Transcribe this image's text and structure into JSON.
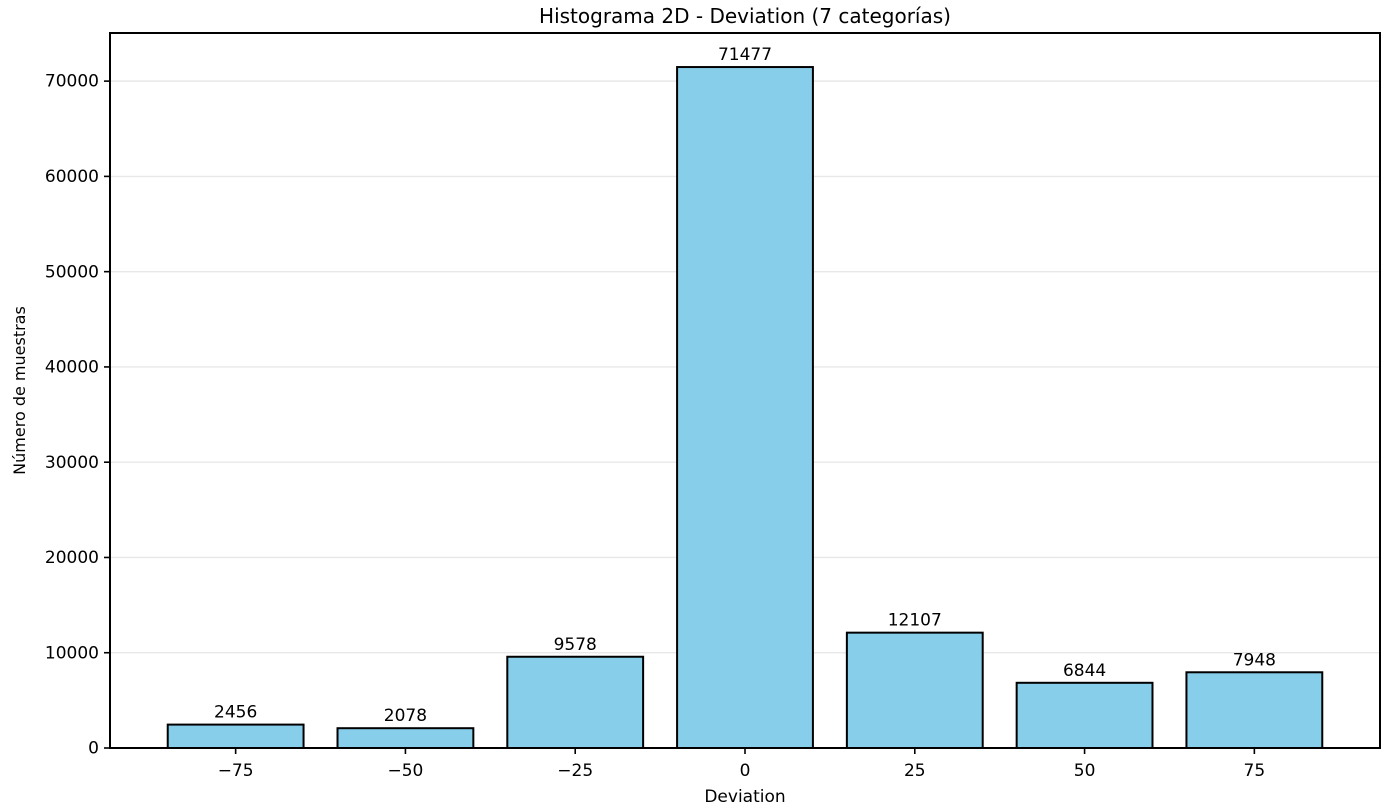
{
  "chart_data": {
    "type": "bar",
    "title": "Histograma 2D - Deviation (7 categorías)",
    "xlabel": "Deviation",
    "ylabel": "Número de muestras",
    "categories": [
      "−75",
      "−50",
      "−25",
      "0",
      "25",
      "50",
      "75"
    ],
    "x_numeric": [
      -75,
      -50,
      -25,
      0,
      25,
      50,
      75
    ],
    "values": [
      2456,
      2078,
      9578,
      71477,
      12107,
      6844,
      7948
    ],
    "bar_value_labels": [
      "2456",
      "2078",
      "9578",
      "71477",
      "12107",
      "6844",
      "7948"
    ],
    "yticks": [
      0,
      10000,
      20000,
      30000,
      40000,
      50000,
      60000,
      70000
    ],
    "ytick_labels": [
      "0",
      "10000",
      "20000",
      "30000",
      "40000",
      "50000",
      "60000",
      "70000"
    ],
    "ylim": [
      0,
      75051
    ],
    "grid": "horizontal",
    "legend_position": "none",
    "colors": {
      "bar_fill": "#87CEEB",
      "bar_edge": "#000000",
      "grid": "#e8e8e8",
      "axis": "#000000",
      "text": "#000000",
      "background": "#ffffff"
    }
  }
}
